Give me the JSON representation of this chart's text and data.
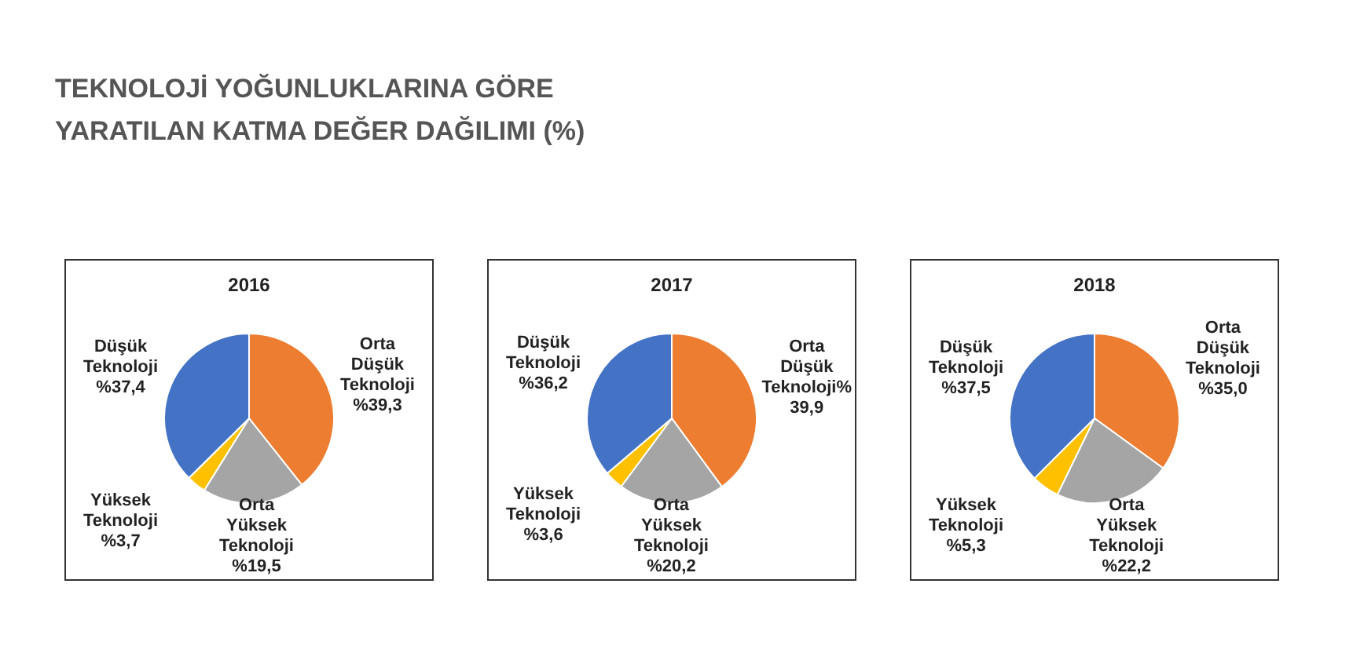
{
  "chart_data": [
    {
      "type": "other",
      "title": "TEKNOLOJİ YOĞUNLUKLARINA GÖRE\nYARATILAN KATMA DEĞER DAĞILIMI (%)"
    },
    {
      "type": "pie",
      "title": "2016",
      "categories": [
        "Orta Düşük Teknoloji",
        "Orta Yüksek Teknoloji",
        "Yüksek Teknoloji",
        "Düşük Teknoloji"
      ],
      "values": [
        39.3,
        19.5,
        3.7,
        37.4
      ],
      "colors": [
        "#ed7d31",
        "#a5a5a5",
        "#ffc000",
        "#4472c4"
      ],
      "value_labels": [
        "%39,3",
        "%19,5",
        "%3,7",
        "%37,4"
      ],
      "legend": false
    },
    {
      "type": "pie",
      "title": "2017",
      "categories": [
        "Orta Düşük Teknoloji%",
        "Orta Yüksek Teknoloji",
        "Yüksek Teknoloji",
        "Düşük Teknoloji"
      ],
      "values": [
        39.9,
        20.2,
        3.6,
        36.2
      ],
      "colors": [
        "#ed7d31",
        "#a5a5a5",
        "#ffc000",
        "#4472c4"
      ],
      "value_labels": [
        "39,9",
        "%20,2",
        "%3,6",
        "%36,2"
      ],
      "legend": false
    },
    {
      "type": "pie",
      "title": "2018",
      "categories": [
        "Orta Düşük Teknoloji",
        "Orta Yüksek Teknoloji",
        "Yüksek Teknoloji",
        "Düşük Teknoloji"
      ],
      "values": [
        35.0,
        22.2,
        5.3,
        37.5
      ],
      "colors": [
        "#ed7d31",
        "#a5a5a5",
        "#ffc000",
        "#4472c4"
      ],
      "value_labels": [
        "%35,0",
        "%22,2",
        "%5,3",
        "%37,5"
      ],
      "legend": false
    }
  ]
}
